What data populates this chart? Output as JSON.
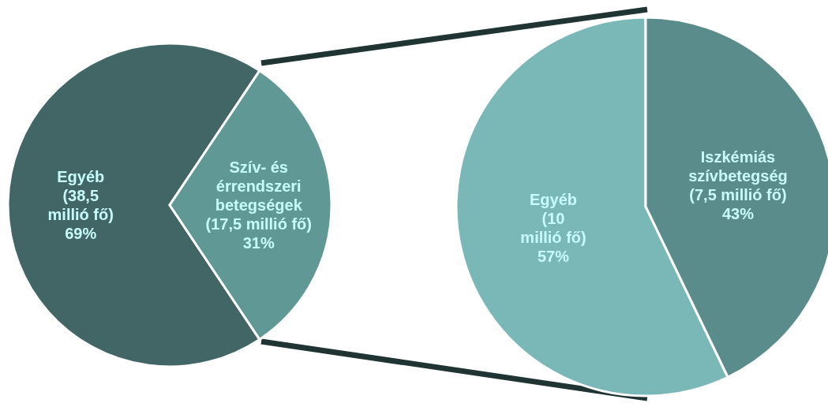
{
  "chart_data": [
    {
      "type": "pie",
      "categories": [
        "Egyéb",
        "Szív- és\nérrendszeri\nbetegségek"
      ],
      "values": [
        38.5,
        17.5
      ],
      "colors": [
        "#416665",
        "#5f9894"
      ],
      "value_labels": [
        "(38,5\nmillió fő)\n69%",
        "(17,5 millió fő)\n31%"
      ]
    },
    {
      "type": "pie",
      "categories": [
        "Egyéb",
        "Iszkémiás\nszívbetegség"
      ],
      "values": [
        10,
        7.5
      ],
      "colors": [
        "#7ab8b8",
        "#5a8c8b"
      ],
      "value_labels": [
        "(10\nmillió fő)\n57%",
        "(7,5 millió fő)\n43%"
      ]
    }
  ]
}
